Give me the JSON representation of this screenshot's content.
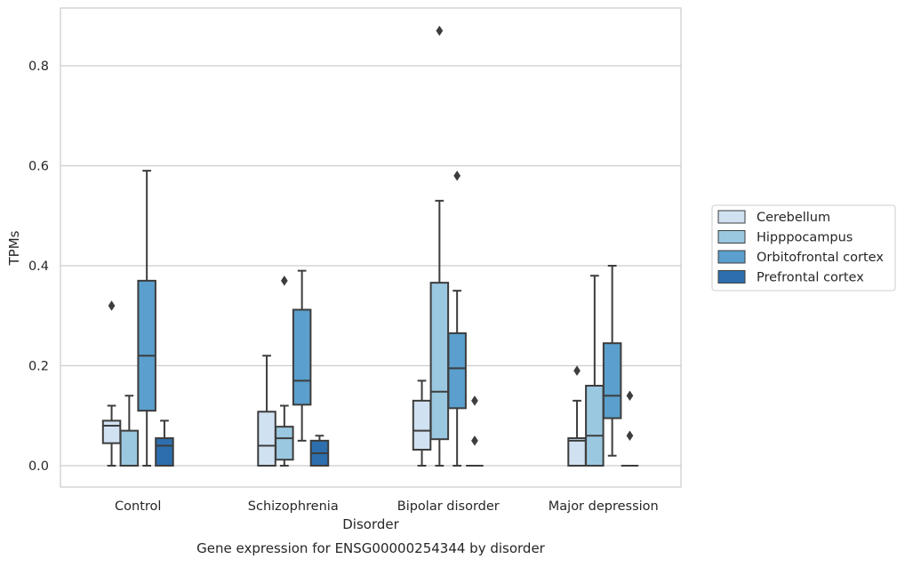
{
  "chart_data": {
    "type": "box",
    "title": "",
    "caption": "Gene expression for ENSG00000254344 by disorder",
    "xlabel": "Disorder",
    "ylabel": "TPMs",
    "categories": [
      "Control",
      "Schizophrenia",
      "Bipolar disorder",
      "Major depression"
    ],
    "ylim": [
      -0.042,
      0.918
    ],
    "yticks": [
      0.0,
      0.2,
      0.4,
      0.6,
      0.8
    ],
    "ytick_labels": [
      "0.0",
      "0.2",
      "0.4",
      "0.6",
      "0.8"
    ],
    "grid": "horizontal",
    "legend_position": "right",
    "series": [
      {
        "name": "Cerebellum",
        "color": "#d0e1f2",
        "boxes": [
          {
            "whislo": 0.0,
            "q1": 0.045,
            "med": 0.08,
            "q3": 0.09,
            "whishi": 0.12,
            "fliers": [
              0.32
            ]
          },
          {
            "whislo": 0.0,
            "q1": 0.0,
            "med": 0.04,
            "q3": 0.108,
            "whishi": 0.22,
            "fliers": []
          },
          {
            "whislo": 0.0,
            "q1": 0.032,
            "med": 0.07,
            "q3": 0.13,
            "whishi": 0.17,
            "fliers": []
          },
          {
            "whislo": 0.0,
            "q1": 0.0,
            "med": 0.05,
            "q3": 0.055,
            "whishi": 0.13,
            "fliers": [
              0.19
            ]
          }
        ]
      },
      {
        "name": "Hipppocampus",
        "color": "#9ac8e0",
        "boxes": [
          {
            "whislo": 0.0,
            "q1": 0.0,
            "med": 0.0,
            "q3": 0.07,
            "whishi": 0.14,
            "fliers": []
          },
          {
            "whislo": 0.0,
            "q1": 0.012,
            "med": 0.055,
            "q3": 0.078,
            "whishi": 0.12,
            "fliers": [
              0.37
            ]
          },
          {
            "whislo": 0.0,
            "q1": 0.053,
            "med": 0.148,
            "q3": 0.366,
            "whishi": 0.53,
            "fliers": [
              0.87
            ]
          },
          {
            "whislo": 0.0,
            "q1": 0.0,
            "med": 0.06,
            "q3": 0.16,
            "whishi": 0.38,
            "fliers": []
          }
        ]
      },
      {
        "name": "Orbitofrontal cortex",
        "color": "#5a9fcd",
        "boxes": [
          {
            "whislo": 0.0,
            "q1": 0.11,
            "med": 0.22,
            "q3": 0.37,
            "whishi": 0.59,
            "fliers": []
          },
          {
            "whislo": 0.05,
            "q1": 0.122,
            "med": 0.17,
            "q3": 0.312,
            "whishi": 0.39,
            "fliers": []
          },
          {
            "whislo": 0.0,
            "q1": 0.115,
            "med": 0.195,
            "q3": 0.265,
            "whishi": 0.35,
            "fliers": [
              0.58
            ]
          },
          {
            "whislo": 0.02,
            "q1": 0.095,
            "med": 0.14,
            "q3": 0.245,
            "whishi": 0.4,
            "fliers": []
          }
        ]
      },
      {
        "name": "Prefrontal cortex",
        "color": "#2d6fae",
        "boxes": [
          {
            "whislo": 0.0,
            "q1": 0.0,
            "med": 0.04,
            "q3": 0.055,
            "whishi": 0.09,
            "fliers": []
          },
          {
            "whislo": 0.0,
            "q1": 0.0,
            "med": 0.025,
            "q3": 0.05,
            "whishi": 0.06,
            "fliers": []
          },
          {
            "whislo": 0.0,
            "q1": 0.0,
            "med": 0.0,
            "q3": 0.0,
            "whishi": 0.0,
            "fliers": [
              0.05,
              0.13
            ]
          },
          {
            "whislo": 0.0,
            "q1": 0.0,
            "med": 0.0,
            "q3": 0.0,
            "whishi": 0.0,
            "fliers": [
              0.06,
              0.14
            ]
          }
        ]
      }
    ]
  }
}
